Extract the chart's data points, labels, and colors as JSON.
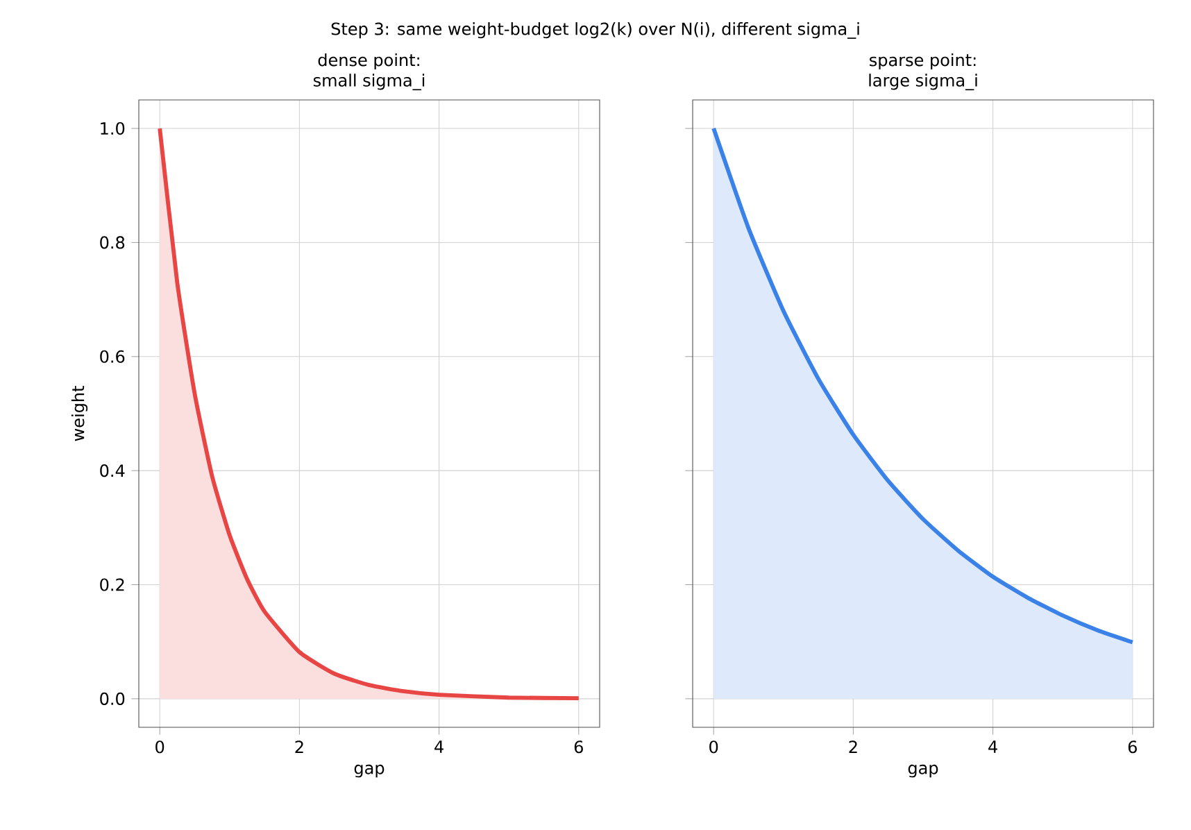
{
  "chart_data": [
    {
      "type": "area",
      "title": "dense point:\nsmall sigma_i",
      "xlabel": "gap",
      "ylabel": "weight",
      "grid": true,
      "annotations": [
        "Step 3: same weight-budget log2(k) over N(i), different sigma_i"
      ],
      "xlim": [
        -0.3,
        6.3
      ],
      "ylim": [
        -0.05,
        1.05
      ],
      "xticks": [
        0,
        2,
        4,
        6
      ],
      "yticks": [
        {
          "value": 0,
          "label": "0.0"
        },
        {
          "value": 0.2,
          "label": "0.2"
        },
        {
          "value": 0.4,
          "label": "0.4"
        },
        {
          "value": 0.6,
          "label": "0.6"
        },
        {
          "value": 0.8,
          "label": "0.8"
        },
        {
          "value": 1.0,
          "label": "1.0"
        }
      ],
      "series": [
        {
          "color": "#e84545",
          "x": [
            0,
            0.25,
            0.5,
            0.75,
            1,
            1.25,
            1.5,
            2,
            2.5,
            3,
            3.5,
            4,
            5,
            6
          ],
          "values": [
            1,
            0.73,
            0.535,
            0.39,
            0.287,
            0.21,
            0.153,
            0.082,
            0.044,
            0.024,
            0.013,
            0.007,
            0.002,
            0.001
          ]
        }
      ]
    },
    {
      "type": "area",
      "title": "sparse point:\nlarge sigma_i",
      "xlabel": "gap",
      "grid": true,
      "tick_labels": "x",
      "xlim": [
        -0.3,
        6.3
      ],
      "ylim": [
        -0.05,
        1.05
      ],
      "xticks": [
        0,
        2,
        4,
        6
      ],
      "yticks": [
        {
          "value": 0,
          "label": null
        },
        {
          "value": 0.2,
          "label": null
        },
        {
          "value": 0.4,
          "label": null
        },
        {
          "value": 0.6,
          "label": null
        },
        {
          "value": 0.8,
          "label": null
        },
        {
          "value": 1.0,
          "label": null
        }
      ],
      "series": [
        {
          "color": "#3b82e8",
          "type": "area",
          "x": [
            0,
            0.5,
            1,
            1.5,
            2,
            2.5,
            3,
            3.5,
            4,
            4.5,
            5,
            5.5,
            6
          ],
          "values": [
            1,
            0.825,
            0.68,
            0.561,
            0.463,
            0.382,
            0.315,
            0.26,
            0.214,
            0.177,
            0.146,
            0.12,
            0.099
          ]
        }
      ]
    }
  ]
}
